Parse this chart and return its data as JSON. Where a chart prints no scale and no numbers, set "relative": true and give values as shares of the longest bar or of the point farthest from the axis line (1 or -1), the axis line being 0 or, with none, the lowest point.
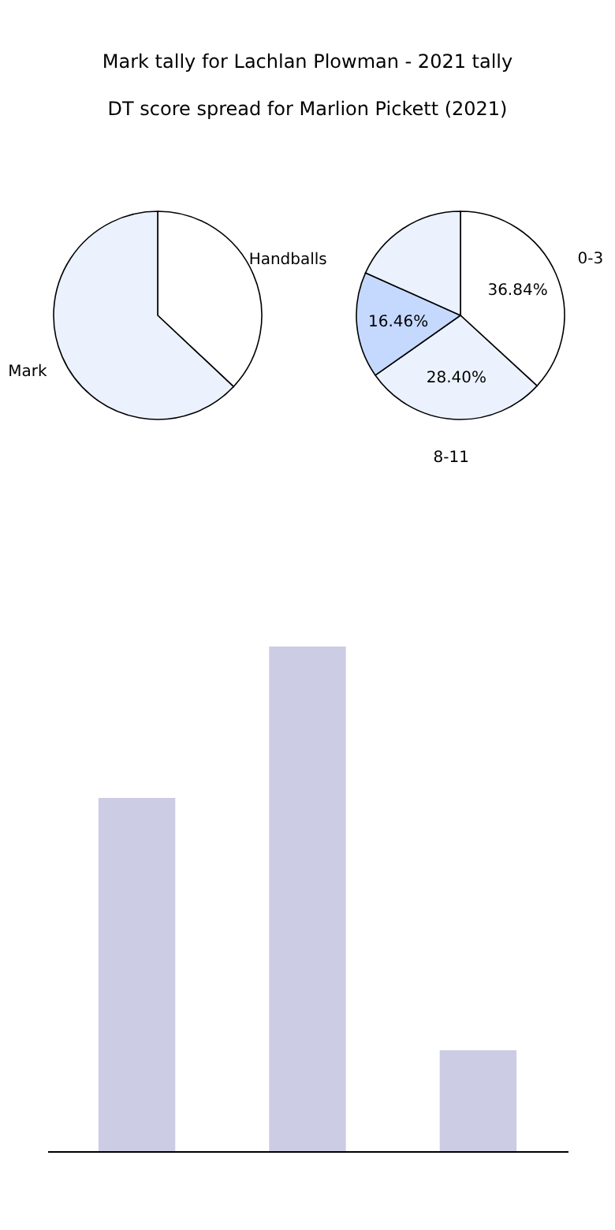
{
  "chart_data": [
    {
      "type": "pie",
      "title": "Mark tally for Lachlan Plowman - 2021 tally",
      "categories": [
        "Handballs",
        "Mark"
      ],
      "values": [
        37,
        63
      ],
      "colors": [
        "#ffffff",
        "#ebf2fe"
      ],
      "legend": false
    },
    {
      "type": "pie",
      "title": "DT score spread for Marlion Pickett (2021)",
      "categories": [
        "0-3",
        "8-11",
        null,
        null
      ],
      "values": [
        36.84,
        28.4,
        16.46,
        18.3
      ],
      "colors": [
        "#ffffff",
        "#ebf2fe",
        "#c5d9fe",
        "#ebf2fe"
      ],
      "value_labels": [
        "36.84%",
        "28.40%",
        "16.46%",
        null
      ],
      "legend": false
    },
    {
      "type": "bar",
      "categories": [
        null,
        null,
        null
      ],
      "values": [
        0.7,
        1,
        0.2
      ],
      "color": "#cccce4",
      "relative": true
    }
  ]
}
